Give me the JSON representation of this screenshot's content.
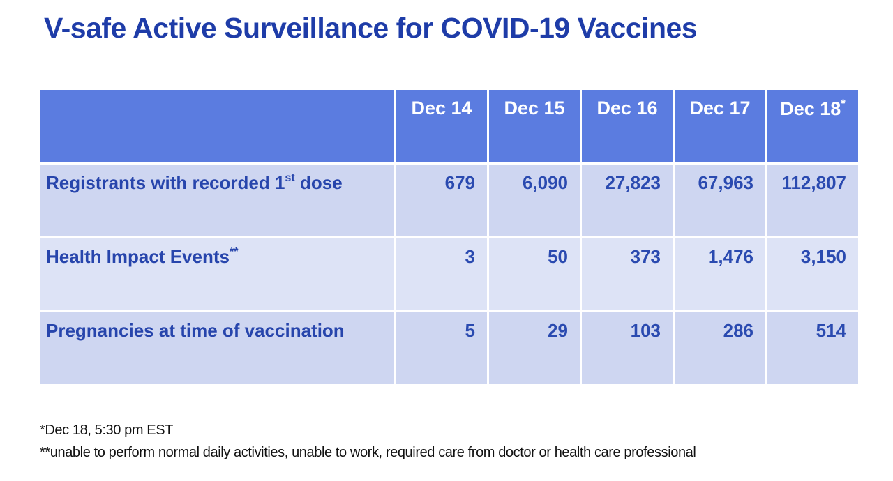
{
  "title": "V-safe Active Surveillance for COVID-19 Vaccines",
  "table": {
    "corner_label": "",
    "columns": [
      "Dec 14",
      "Dec 15",
      "Dec 16",
      "Dec 17",
      "Dec 18"
    ],
    "last_column_marker": "*",
    "rows": [
      {
        "label": "Registrants with recorded 1",
        "label_sup": "st",
        "label_suffix": " dose",
        "values": [
          "679",
          "6,090",
          "27,823",
          "67,963",
          "112,807"
        ]
      },
      {
        "label": "Health Impact Events",
        "label_sup": "**",
        "label_suffix": "",
        "values": [
          "3",
          "50",
          "373",
          "1,476",
          "3,150"
        ]
      },
      {
        "label": "Pregnancies at time of vaccination",
        "label_sup": "",
        "label_suffix": "",
        "values": [
          "5",
          "29",
          "103",
          "286",
          "514"
        ]
      }
    ]
  },
  "footnotes": {
    "line1": "*Dec 18, 5:30 pm EST",
    "line2": "**unable to perform normal daily activities, unable to work, required care from doctor or health care professional"
  },
  "chart_data": {
    "type": "table",
    "title": "V-safe Active Surveillance for COVID-19 Vaccines",
    "categories": [
      "Dec 14",
      "Dec 15",
      "Dec 16",
      "Dec 17",
      "Dec 18"
    ],
    "series": [
      {
        "name": "Registrants with recorded 1st dose",
        "values": [
          679,
          6090,
          27823,
          67963,
          112807
        ]
      },
      {
        "name": "Health Impact Events",
        "values": [
          3,
          50,
          373,
          1476,
          3150
        ]
      },
      {
        "name": "Pregnancies at time of vaccination",
        "values": [
          5,
          29,
          103,
          286,
          514
        ]
      }
    ]
  },
  "colors": {
    "title_text": "#1e3ca8",
    "header_bg": "#5b7ce0",
    "header_text": "#ffffff",
    "row_odd_bg": "#ced6f1",
    "row_even_bg": "#dde3f6",
    "cell_text": "#2a4ab0",
    "footnote_text": "#111111",
    "page_bg": "#ffffff"
  }
}
